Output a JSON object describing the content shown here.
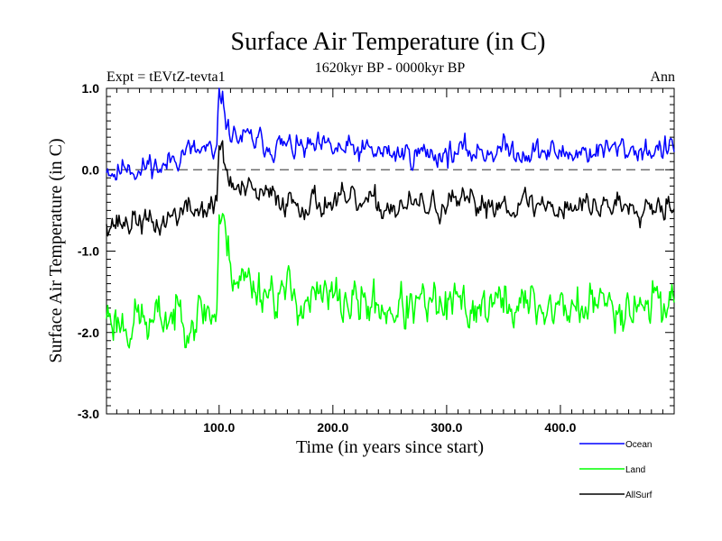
{
  "chart_data": {
    "type": "line",
    "title": "Surface Air Temperature (in C)",
    "subtitle": "1620kyr BP - 0000kyr BP",
    "left_label": "Expt = tEVtZ-tevta1",
    "right_label": "Ann",
    "xlabel": "Time (in years since start)",
    "ylabel": "Surface Air Temperature (in C)",
    "xlim": [
      1,
      500
    ],
    "ylim": [
      -3.0,
      1.0
    ],
    "x_ticks": [
      100,
      200,
      300,
      400
    ],
    "x_tick_labels": [
      "100.0",
      "200.0",
      "300.0",
      "400.0"
    ],
    "y_ticks": [
      -3,
      -2,
      -1,
      0,
      1
    ],
    "y_tick_labels": [
      "-3.0",
      "-2.0",
      "-1.0",
      "0.0",
      "1.0"
    ],
    "reference_line": {
      "y": 0.0,
      "style": "dashed"
    },
    "series": [
      {
        "name": "Ocean",
        "color": "#0000ff",
        "anchors": [
          [
            1,
            0.05
          ],
          [
            10,
            -0.05
          ],
          [
            20,
            0.1
          ],
          [
            30,
            -0.05
          ],
          [
            40,
            0.1
          ],
          [
            50,
            0.0
          ],
          [
            60,
            0.15
          ],
          [
            70,
            0.25
          ],
          [
            80,
            0.2
          ],
          [
            90,
            0.25
          ],
          [
            95,
            0.1
          ],
          [
            98,
            0.2
          ],
          [
            100,
            0.95
          ],
          [
            103,
            0.85
          ],
          [
            108,
            0.5
          ],
          [
            115,
            0.4
          ],
          [
            130,
            0.35
          ],
          [
            150,
            0.3
          ],
          [
            175,
            0.25
          ],
          [
            200,
            0.25
          ],
          [
            250,
            0.2
          ],
          [
            300,
            0.2
          ],
          [
            350,
            0.25
          ],
          [
            400,
            0.2
          ],
          [
            450,
            0.25
          ],
          [
            500,
            0.25
          ]
        ],
        "noise": 0.12,
        "seed": 11
      },
      {
        "name": "Land",
        "color": "#00ff00",
        "anchors": [
          [
            1,
            -1.75
          ],
          [
            10,
            -1.85
          ],
          [
            20,
            -1.9
          ],
          [
            30,
            -1.8
          ],
          [
            40,
            -1.95
          ],
          [
            50,
            -1.8
          ],
          [
            60,
            -1.8
          ],
          [
            70,
            -1.75
          ],
          [
            80,
            -1.8
          ],
          [
            90,
            -1.7
          ],
          [
            95,
            -1.8
          ],
          [
            98,
            -1.7
          ],
          [
            100,
            -0.55
          ],
          [
            103,
            -0.7
          ],
          [
            108,
            -1.0
          ],
          [
            115,
            -1.3
          ],
          [
            130,
            -1.4
          ],
          [
            150,
            -1.5
          ],
          [
            175,
            -1.6
          ],
          [
            200,
            -1.6
          ],
          [
            250,
            -1.7
          ],
          [
            300,
            -1.7
          ],
          [
            350,
            -1.65
          ],
          [
            400,
            -1.7
          ],
          [
            450,
            -1.65
          ],
          [
            500,
            -1.6
          ]
        ],
        "noise": 0.22,
        "seed": 23
      },
      {
        "name": "AllSurf",
        "color": "#000000",
        "anchors": [
          [
            1,
            -0.6
          ],
          [
            10,
            -0.65
          ],
          [
            20,
            -0.65
          ],
          [
            30,
            -0.6
          ],
          [
            40,
            -0.7
          ],
          [
            50,
            -0.65
          ],
          [
            60,
            -0.55
          ],
          [
            70,
            -0.5
          ],
          [
            80,
            -0.5
          ],
          [
            90,
            -0.45
          ],
          [
            95,
            -0.5
          ],
          [
            98,
            -0.4
          ],
          [
            100,
            0.35
          ],
          [
            103,
            0.2
          ],
          [
            108,
            -0.1
          ],
          [
            115,
            -0.25
          ],
          [
            130,
            -0.3
          ],
          [
            150,
            -0.35
          ],
          [
            175,
            -0.4
          ],
          [
            200,
            -0.4
          ],
          [
            250,
            -0.45
          ],
          [
            300,
            -0.45
          ],
          [
            350,
            -0.4
          ],
          [
            400,
            -0.45
          ],
          [
            450,
            -0.42
          ],
          [
            500,
            -0.4
          ]
        ],
        "noise": 0.13,
        "seed": 37
      }
    ]
  }
}
